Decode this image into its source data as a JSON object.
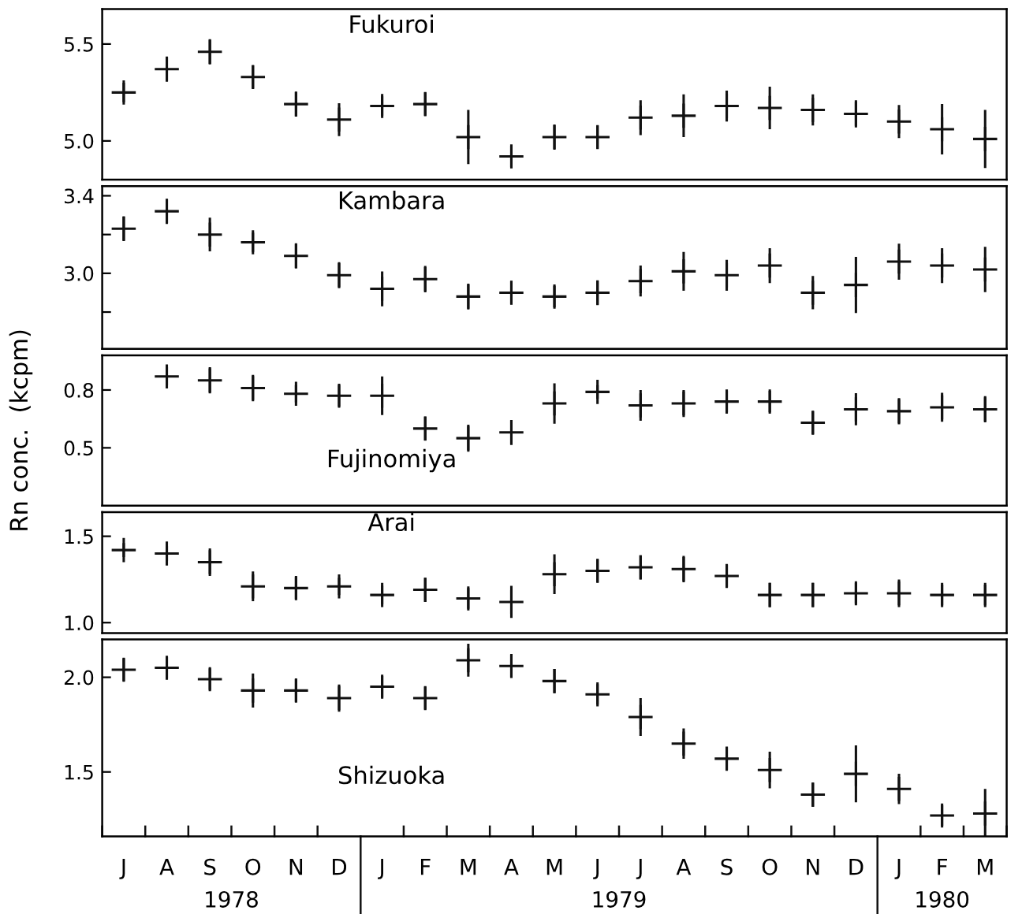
{
  "chart_data": [
    {
      "type": "scatter",
      "title": "Fukuroi",
      "categories": [
        null,
        null,
        null,
        null,
        null,
        null,
        null,
        null,
        null,
        null,
        null,
        null,
        null,
        null,
        null,
        null,
        null,
        null,
        null,
        null,
        null
      ],
      "series": [
        {
          "color": "#111111",
          "values": [
            5.25,
            5.37,
            5.46,
            5.33,
            5.19,
            5.11,
            5.18,
            5.19,
            5.02,
            4.92,
            5.02,
            5.02,
            5.12,
            5.13,
            5.18,
            5.17,
            5.16,
            5.14,
            5.1,
            5.06,
            5.01
          ],
          "errors": [
            0.05,
            0.065,
            0.065,
            0.06,
            0.065,
            0.085,
            0.05,
            0.06,
            0.14,
            0.055,
            0.065,
            0.06,
            0.09,
            0.11,
            0.08,
            0.11,
            0.08,
            0.07,
            0.085,
            0.13,
            0.15
          ]
        }
      ],
      "ylim": [
        4.8,
        5.68
      ],
      "yticks": [
        {
          "value": 5.0,
          "label": "5.0"
        },
        5.5
      ],
      "tick_labels": "y",
      "marker": "cross",
      "grid": false
    },
    {
      "type": "scatter",
      "title": "Kambara",
      "categories": [
        null,
        null,
        null,
        null,
        null,
        null,
        null,
        null,
        null,
        null,
        null,
        null,
        null,
        null,
        null,
        null,
        null,
        null,
        null,
        null,
        null
      ],
      "series": [
        {
          "color": "#111111",
          "values": [
            3.23,
            3.32,
            3.2,
            3.16,
            3.09,
            2.99,
            2.92,
            2.97,
            2.88,
            2.9,
            2.88,
            2.9,
            2.96,
            3.01,
            2.99,
            3.04,
            2.9,
            2.94,
            3.06,
            3.04,
            3.02
          ],
          "errors": [
            0.064,
            0.065,
            0.087,
            0.05,
            0.065,
            0.067,
            0.09,
            0.068,
            0.067,
            0.06,
            0.055,
            0.064,
            0.08,
            0.1,
            0.08,
            0.09,
            0.086,
            0.145,
            0.093,
            0.09,
            0.117
          ]
        }
      ],
      "ylim": [
        2.61,
        3.45
      ],
      "yticks": [
        {
          "value": 2.8,
          "label": null
        },
        {
          "value": 3.0,
          "label": "3.0"
        },
        {
          "value": 3.2,
          "label": null
        },
        3.4
      ],
      "tick_labels": "y",
      "marker": "cross",
      "grid": false
    },
    {
      "type": "scatter",
      "title": "Fujinomiya",
      "ylabel": "Rn conc.  (kcpm)",
      "categories": [
        null,
        null,
        null,
        null,
        null,
        null,
        null,
        null,
        null,
        null,
        null,
        null,
        null,
        null,
        null,
        null,
        null,
        null,
        null,
        null,
        null
      ],
      "series": [
        {
          "color": "#111111",
          "values": [
            null,
            0.87,
            0.85,
            0.81,
            0.78,
            0.77,
            0.77,
            0.6,
            0.55,
            0.58,
            0.73,
            0.79,
            0.72,
            0.73,
            0.74,
            0.74,
            0.63,
            0.7,
            0.69,
            0.71,
            0.7
          ],
          "errors": [
            null,
            0.048,
            0.068,
            0.068,
            0.045,
            0.056,
            0.1,
            0.062,
            0.07,
            0.065,
            0.105,
            0.035,
            0.08,
            0.07,
            0.056,
            0.056,
            0.06,
            0.083,
            0.068,
            0.075,
            0.068
          ]
        }
      ],
      "ylim": [
        0.2,
        0.98
      ],
      "yticks": [
        0.5,
        0.8
      ],
      "tick_labels": "y",
      "marker": "cross",
      "grid": false
    },
    {
      "type": "scatter",
      "title": "Arai",
      "categories": [
        null,
        null,
        null,
        null,
        null,
        null,
        null,
        null,
        null,
        null,
        null,
        null,
        null,
        null,
        null,
        null,
        null,
        null,
        null,
        null,
        null
      ],
      "series": [
        {
          "color": "#111111",
          "values": [
            1.42,
            1.4,
            1.35,
            1.21,
            1.2,
            1.21,
            1.16,
            1.19,
            1.14,
            1.12,
            1.28,
            1.3,
            1.32,
            1.31,
            1.27,
            1.16,
            1.16,
            1.17,
            1.17,
            1.16,
            1.16
          ],
          "errors": [
            0.04,
            0.045,
            0.08,
            0.086,
            0.064,
            0.05,
            0.054,
            0.07,
            0.06,
            0.093,
            0.115,
            0.068,
            0.07,
            0.076,
            0.064,
            0.07,
            0.07,
            0.06,
            0.08,
            0.06,
            0.06
          ]
        }
      ],
      "ylim": [
        0.94,
        1.64
      ],
      "yticks": [
        {
          "value": 1.0,
          "label": "1.0"
        },
        1.5
      ],
      "tick_labels": "y",
      "marker": "cross",
      "grid": false
    },
    {
      "type": "scatter",
      "title": "Shizuoka",
      "categories": [
        "J",
        "A",
        "S",
        "O",
        "N",
        "D",
        "J",
        "F",
        "M",
        "A",
        "M",
        "J",
        "J",
        "A",
        "S",
        "O",
        "N",
        "D",
        "J",
        "F",
        "M"
      ],
      "series": [
        {
          "color": "#111111",
          "values": [
            2.04,
            2.05,
            1.99,
            1.93,
            1.93,
            1.89,
            1.95,
            1.89,
            2.09,
            2.06,
            1.98,
            1.91,
            1.79,
            1.65,
            1.57,
            1.51,
            1.38,
            1.49,
            1.41,
            1.27,
            1.28
          ],
          "errors": [
            0.06,
            0.057,
            0.057,
            0.09,
            0.06,
            0.072,
            0.057,
            0.06,
            0.087,
            0.06,
            0.064,
            0.054,
            0.1,
            0.08,
            0.06,
            0.097,
            0.064,
            0.15,
            0.08,
            0.054,
            0.13
          ]
        }
      ],
      "ylim": [
        1.16,
        2.2
      ],
      "yticks": [
        1.5,
        {
          "value": 2.0,
          "label": "2.0"
        }
      ],
      "annotations": [
        "1978",
        "1979",
        "1980"
      ],
      "marker": "cross",
      "grid": false
    }
  ]
}
